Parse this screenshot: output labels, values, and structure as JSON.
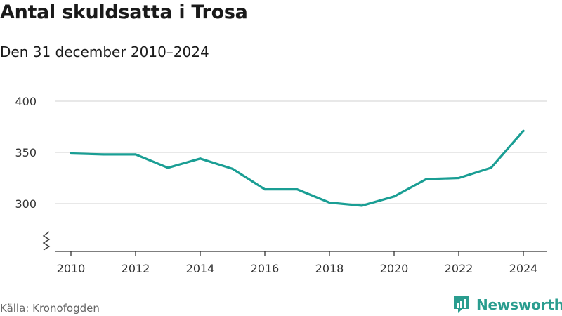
{
  "title": "Antal skuldsatta i Trosa",
  "subtitle": "Den 31 december 2010–2024",
  "source": "Källa: Kronofogden",
  "brand": {
    "name": "Newsworthy",
    "icon": "newsworthy-logo-icon"
  },
  "colors": {
    "line": "#1a9e94",
    "grid": "#d9d9d9",
    "axis": "#333333",
    "brand": "#2a9d8f"
  },
  "chart_data": {
    "type": "line",
    "title": "Antal skuldsatta i Trosa",
    "subtitle": "Den 31 december 2010–2024",
    "x": [
      2010,
      2011,
      2012,
      2013,
      2014,
      2015,
      2016,
      2017,
      2018,
      2019,
      2020,
      2021,
      2022,
      2023,
      2024
    ],
    "series": [
      {
        "values": [
          349,
          348,
          348,
          335,
          344,
          334,
          314,
          314,
          301,
          298,
          307,
          324,
          325,
          335,
          371
        ]
      }
    ],
    "xticks": [
      "2010",
      "2012",
      "2014",
      "2016",
      "2018",
      "2020",
      "2022",
      "2024"
    ],
    "yticks": [
      "300",
      "350",
      "400"
    ],
    "ylim": [
      250,
      400
    ],
    "axis_break": true,
    "grid": true,
    "xlabel": "",
    "ylabel": ""
  }
}
